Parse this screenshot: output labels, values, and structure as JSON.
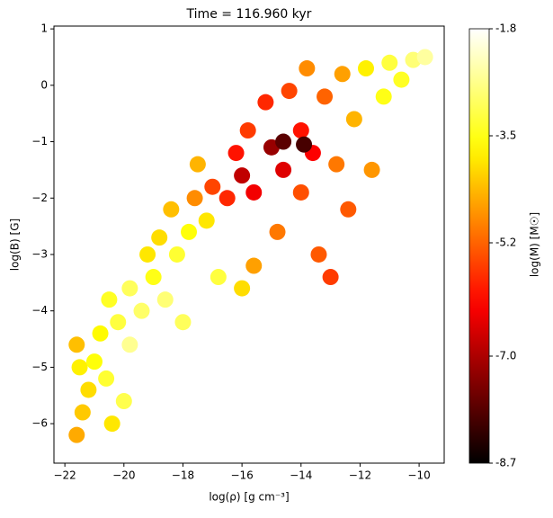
{
  "chart_data": {
    "type": "scatter",
    "title": "Time = 116.960 kyr",
    "x_label": "log(ρ) [g cm⁻³]",
    "y_label": "log(B) [G]",
    "xlim": [
      -22.37,
      -9.15
    ],
    "ylim": [
      -6.7,
      1.05
    ],
    "xticks": [
      {
        "value": -22,
        "label": "−22"
      },
      {
        "value": -20,
        "label": "−20"
      },
      {
        "value": -18,
        "label": "−18"
      },
      {
        "value": -16,
        "label": "−16"
      },
      {
        "value": -14,
        "label": "−14"
      },
      {
        "value": -12,
        "label": "−12"
      },
      {
        "value": -10,
        "label": "−10"
      }
    ],
    "yticks": [
      1,
      0,
      {
        "value": -1,
        "label": "−1"
      },
      {
        "value": -2,
        "label": "−2"
      },
      {
        "value": -3,
        "label": "−3"
      },
      {
        "value": -4,
        "label": "−4"
      },
      {
        "value": -5,
        "label": "−5"
      },
      {
        "value": -6,
        "label": "−6"
      }
    ],
    "colormap": "hot",
    "colorbar": {
      "label": "log(M) [M☉]",
      "lim": [
        -8.7,
        -1.8
      ],
      "ticks": [
        -1.8,
        -3.5,
        -5.2,
        {
          "value": -7,
          "label": "-7.0"
        },
        -8.7
      ]
    },
    "series": [
      {
        "x": [
          -21.6,
          -21.4,
          -21.2,
          -21.5,
          -21.6,
          -21.0,
          -20.6,
          -20.8,
          -20.2,
          -20.5,
          -19.8,
          -19.4,
          -19.0,
          -18.6,
          -19.2,
          -18.8,
          -18.2,
          -17.8,
          -18.4,
          -17.6,
          -17.2,
          -17.0,
          -16.8,
          -16.5,
          -16.2,
          -15.8,
          -15.6,
          -15.2,
          -15.0,
          -14.6,
          -14.8,
          -14.4,
          -14.0,
          -14.0,
          -13.6,
          -13.8,
          -13.4,
          -13.2,
          -12.8,
          -12.6,
          -12.4,
          -12.2,
          -11.8,
          -11.6,
          -11.2,
          -11.0,
          -10.6,
          -10.2,
          -9.8,
          -13.0,
          -15.6,
          -16.0,
          -18.0,
          -19.8,
          -20.4,
          -20.0,
          -16.0,
          -14.6,
          -13.9,
          -17.5
        ],
        "y": [
          -6.2,
          -5.8,
          -5.4,
          -5.0,
          -4.6,
          -4.9,
          -5.2,
          -4.4,
          -4.2,
          -3.8,
          -3.6,
          -4.0,
          -3.4,
          -3.8,
          -3.0,
          -2.7,
          -3.0,
          -2.6,
          -2.2,
          -2.0,
          -2.4,
          -1.8,
          -3.4,
          -2.0,
          -1.2,
          -0.8,
          -1.9,
          -0.3,
          -1.1,
          -1.5,
          -2.6,
          -0.1,
          -0.8,
          -1.9,
          -1.2,
          0.3,
          -3.0,
          -0.2,
          -1.4,
          0.2,
          -2.2,
          -0.6,
          0.3,
          -1.5,
          -0.2,
          0.4,
          0.1,
          0.45,
          0.5,
          -3.4,
          -3.2,
          -3.6,
          -4.2,
          -4.6,
          -6.0,
          -5.6,
          -1.6,
          -1.0,
          -1.05,
          -1.4
        ],
        "c": [
          -4.5,
          -4.2,
          -4.0,
          -3.8,
          -4.3,
          -3.6,
          -3.3,
          -3.7,
          -3.2,
          -3.4,
          -3.0,
          -2.9,
          -3.5,
          -2.8,
          -3.9,
          -4.0,
          -3.3,
          -3.6,
          -4.3,
          -4.8,
          -3.9,
          -5.5,
          -3.2,
          -5.8,
          -6.0,
          -5.6,
          -6.3,
          -5.8,
          -7.2,
          -6.5,
          -5.0,
          -5.5,
          -6.0,
          -5.4,
          -6.2,
          -4.8,
          -5.3,
          -5.2,
          -5.0,
          -4.6,
          -5.3,
          -4.4,
          -3.8,
          -4.7,
          -3.5,
          -3.2,
          -3.4,
          -2.8,
          -2.5,
          -5.6,
          -4.6,
          -4.0,
          -3.0,
          -2.6,
          -3.9,
          -3.1,
          -6.8,
          -7.8,
          -8.0,
          -4.4
        ]
      }
    ]
  }
}
